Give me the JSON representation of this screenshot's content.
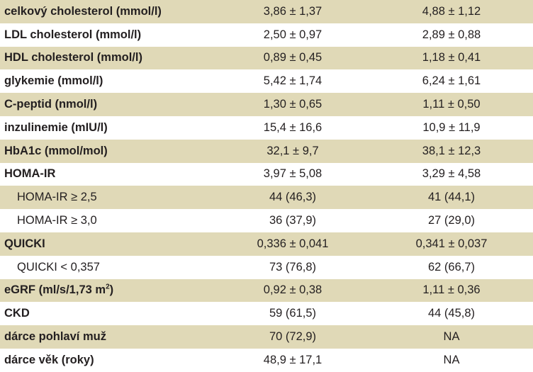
{
  "rows": [
    {
      "label": "celkový cholesterol (mmol/l)",
      "v1": "3,86 ± 1,37",
      "v2": "4,88 ± 1,12"
    },
    {
      "label": "LDL cholesterol (mmol/l)",
      "v1": "2,50 ± 0,97",
      "v2": "2,89 ± 0,88"
    },
    {
      "label": "HDL cholesterol (mmol/l)",
      "v1": "0,89 ± 0,45",
      "v2": "1,18 ± 0,41"
    },
    {
      "label": "glykemie (mmol/l)",
      "v1": "5,42 ± 1,74",
      "v2": "6,24 ± 1,61"
    },
    {
      "label": "C-peptid (nmol/l)",
      "v1": "1,30 ± 0,65",
      "v2": "1,11 ± 0,50"
    },
    {
      "label": "inzulinemie (mIU/l)",
      "v1": "15,4 ± 16,6",
      "v2": "10,9 ± 11,9"
    },
    {
      "label": "HbA1c (mmol/mol)",
      "v1": "32,1 ± 9,7",
      "v2": "38,1 ± 12,3"
    },
    {
      "label": "HOMA-IR",
      "v1": "3,97 ± 5,08",
      "v2": "3,29 ± 4,58"
    },
    {
      "label": "HOMA-IR ≥ 2,5",
      "v1": "44 (46,3)",
      "v2": "41 (44,1)"
    },
    {
      "label": "HOMA-IR ≥ 3,0",
      "v1": "36 (37,9)",
      "v2": "27 (29,0)"
    },
    {
      "label": "QUICKI",
      "v1": "0,336 ± 0,041",
      "v2": "0,341 ± 0,037"
    },
    {
      "label": "QUICKI < 0,357",
      "v1": "73 (76,8)",
      "v2": "62 (66,7)"
    },
    {
      "label": "eGRF (ml/s/1,73 m",
      "label_sup": "2",
      "label_suffix": ")",
      "v1": "0,92 ± 0,38",
      "v2": "1,11 ± 0,36"
    },
    {
      "label": "CKD",
      "v1": "59 (61,5)",
      "v2": "44 (45,8)"
    },
    {
      "label": "dárce pohlaví muž",
      "v1": "70 (72,9)",
      "v2": "NA"
    },
    {
      "label": "dárce věk (roky)",
      "v1": "48,9 ± 17,1",
      "v2": "NA"
    }
  ]
}
